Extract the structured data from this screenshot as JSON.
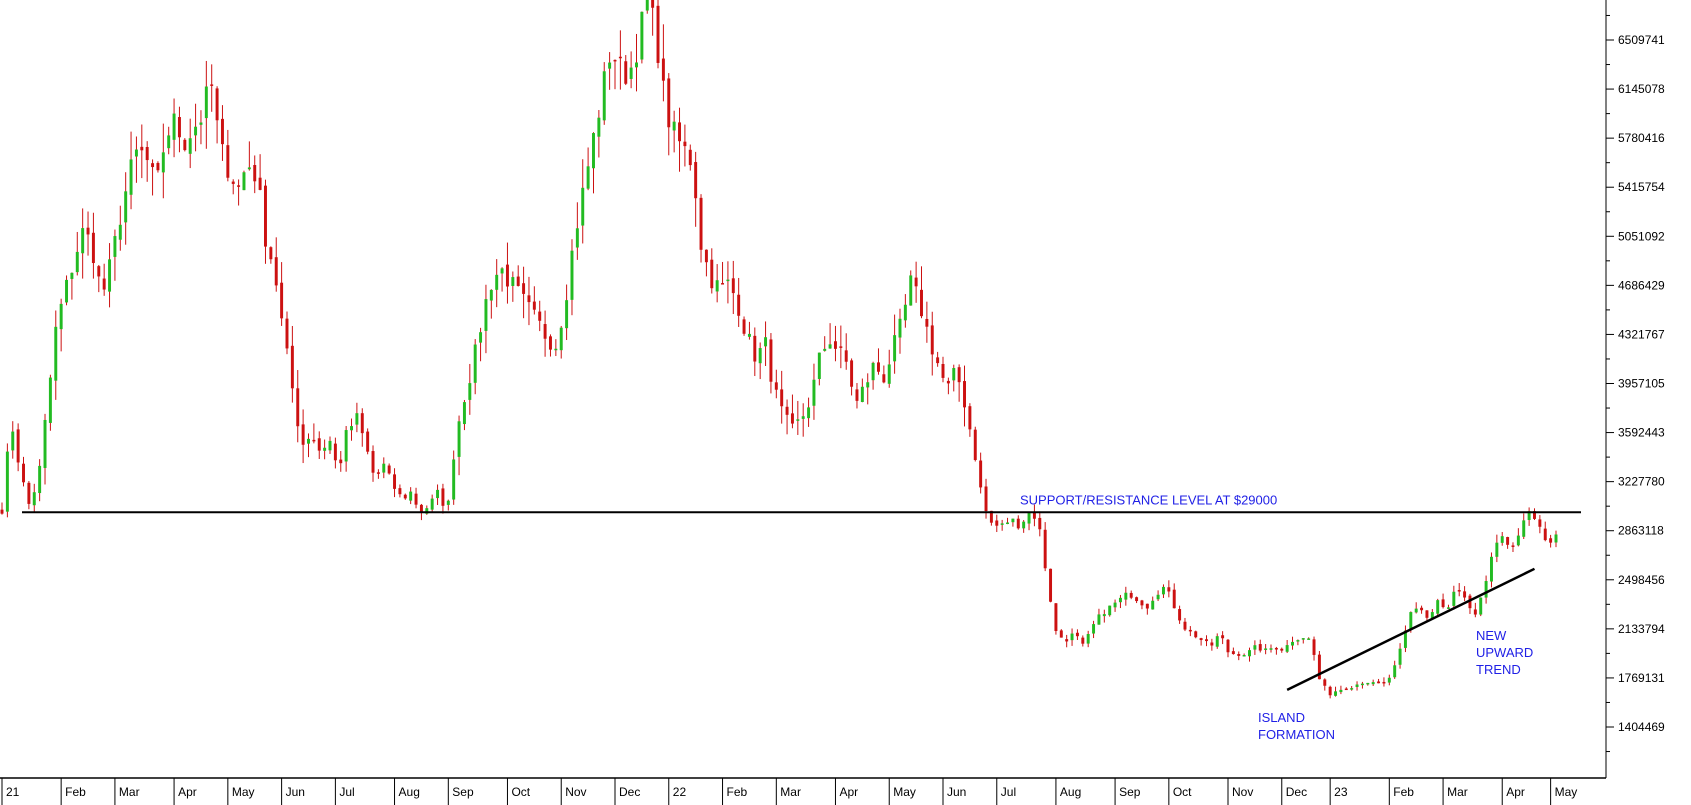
{
  "chart_data": {
    "type": "candlestick",
    "title": "",
    "xlabel": "",
    "ylabel": "",
    "ylim": [
      1100000,
      6850000
    ],
    "grid": false,
    "colors": {
      "up": "#22bb22",
      "down": "#cc1111",
      "annotation": "#1f1fe6",
      "line": "#000000"
    },
    "y_ticks": [
      1404469,
      1769131,
      2133794,
      2498456,
      2863118,
      3227780,
      3592443,
      3957105,
      4321767,
      4686429,
      5051092,
      5415754,
      5780416,
      6145078,
      6509741
    ],
    "y_tick_labels": [
      "1404469",
      "1769131",
      "2133794",
      "2498456",
      "2863118",
      "3227780",
      "3592443",
      "3957105",
      "4321767",
      "4686429",
      "5051092",
      "5415754",
      "5780416",
      "6145078",
      "6509741"
    ],
    "x_ticks": [
      {
        "label": "21",
        "index": 0
      },
      {
        "label": "Feb",
        "index": 11
      },
      {
        "label": "Mar",
        "index": 21
      },
      {
        "label": "Apr",
        "index": 32
      },
      {
        "label": "May",
        "index": 42
      },
      {
        "label": "Jun",
        "index": 52
      },
      {
        "label": "Jul",
        "index": 62
      },
      {
        "label": "Aug",
        "index": 73
      },
      {
        "label": "Sep",
        "index": 83
      },
      {
        "label": "Oct",
        "index": 94
      },
      {
        "label": "Nov",
        "index": 104
      },
      {
        "label": "Dec",
        "index": 114
      },
      {
        "label": "22",
        "index": 124
      },
      {
        "label": "Feb",
        "index": 134
      },
      {
        "label": "Mar",
        "index": 144
      },
      {
        "label": "Apr",
        "index": 155
      },
      {
        "label": "May",
        "index": 165
      },
      {
        "label": "Jun",
        "index": 175
      },
      {
        "label": "Jul",
        "index": 185
      },
      {
        "label": "Aug",
        "index": 196
      },
      {
        "label": "Sep",
        "index": 207
      },
      {
        "label": "Oct",
        "index": 217
      },
      {
        "label": "Nov",
        "index": 228
      },
      {
        "label": "Dec",
        "index": 238
      },
      {
        "label": "23",
        "index": 247
      },
      {
        "label": "Feb",
        "index": 258
      },
      {
        "label": "Mar",
        "index": 268
      },
      {
        "label": "Apr",
        "index": 279
      },
      {
        "label": "May",
        "index": 288
      }
    ],
    "closes": [
      3020000,
      3700000,
      3300000,
      3050000,
      3250000,
      3800000,
      4400000,
      4650000,
      4900000,
      5100000,
      4950000,
      4600000,
      4850000,
      5200000,
      5500000,
      5700000,
      5600000,
      5400000,
      5800000,
      5900000,
      5750000,
      5850000,
      5950000,
      6200000,
      5700000,
      5550000,
      5400000,
      5600000,
      5500000,
      5050000,
      4800000,
      4300000,
      3900000,
      3500000,
      3600000,
      3450000,
      3550000,
      3300000,
      3600000,
      3700000,
      3500000,
      3250000,
      3350000,
      3200000,
      3100000,
      3150000,
      3000000,
      3050000,
      3150000,
      3000000,
      3600000,
      3900000,
      4150000,
      4500000,
      4750000,
      4800000,
      4700000,
      4600000,
      4500000,
      4400000,
      4300000,
      4250000,
      4600000,
      5050000,
      5400000,
      5750000,
      6100000,
      6450000,
      6300000,
      6250000,
      6500000,
      6800000,
      6550000,
      6000000,
      5800000,
      5700000,
      5600000,
      4950000,
      4750000,
      4650000,
      4700000,
      4550000,
      4300000,
      4150000,
      4250000,
      3900000,
      3700000,
      3600000,
      3700000,
      3850000,
      4150000,
      4300000,
      4200000,
      4100000,
      3800000,
      3950000,
      4100000,
      4000000,
      4200000,
      4400000,
      4700000,
      4550000,
      4300000,
      4100000,
      3900000,
      4050000,
      3800000,
      3450000,
      3050000,
      2900000,
      2900000,
      2950000,
      2900000,
      3000000,
      2950000,
      2500000,
      2100000,
      2050000,
      2100000,
      2000000,
      2150000,
      2250000,
      2300000,
      2350000,
      2400000,
      2350000,
      2300000,
      2400000,
      2450000,
      2300000,
      2150000,
      2100000,
      2050000,
      2000000,
      2100000,
      1950000,
      1950000,
      1950000,
      2000000,
      1970000,
      2000000,
      1980000,
      2050000,
      2080000,
      2050000,
      1750000,
      1650000,
      1680000,
      1700000,
      1720000,
      1750000,
      1720000,
      1720000,
      1800000,
      2000000,
      2250000,
      2300000,
      2200000,
      2350000,
      2250000,
      2450000,
      2350000,
      2200000,
      2400000,
      2700000,
      2800000,
      2750000,
      2850000,
      3000000,
      2900000,
      2750000,
      2850000
    ],
    "annotations": [
      {
        "text": "SUPPORT/RESISTANCE LEVEL AT $29000",
        "level": 3000000
      },
      {
        "text": "NEW",
        "group": "trend"
      },
      {
        "text": "UPWARD",
        "group": "trend"
      },
      {
        "text": "TREND",
        "group": "trend"
      },
      {
        "text": "ISLAND",
        "group": "island"
      },
      {
        "text": "FORMATION",
        "group": "island"
      }
    ],
    "trend_line": {
      "from": {
        "index": 239,
        "value": 1680000
      },
      "to": {
        "index": 285,
        "value": 2580000
      }
    },
    "bar_count": 290
  }
}
